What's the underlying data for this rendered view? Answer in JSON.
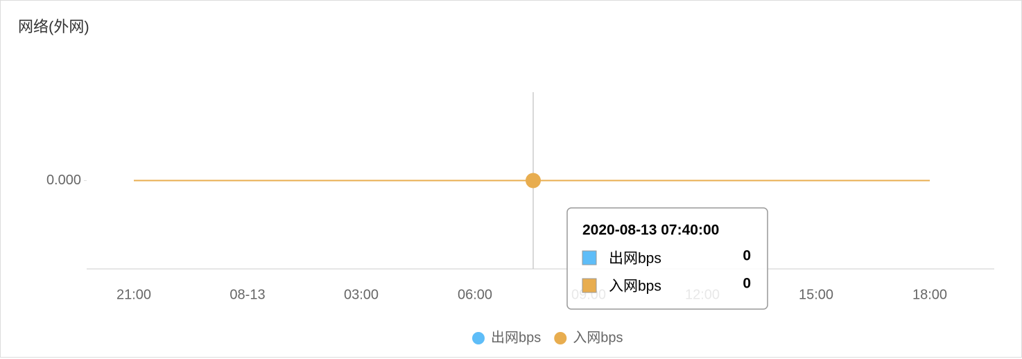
{
  "chart_data": {
    "type": "line",
    "title": "网络(外网)",
    "categories": [
      "21:00",
      "08-13",
      "03:00",
      "06:00",
      "09:00",
      "12:00",
      "15:00",
      "18:00"
    ],
    "series": [
      {
        "name": "出网bps",
        "color": "#5ebdf8",
        "values": [
          0,
          0,
          0,
          0,
          0,
          0,
          0,
          0
        ]
      },
      {
        "name": "入网bps",
        "color": "#e8ad4f",
        "values": [
          0,
          0,
          0,
          0,
          0,
          0,
          0,
          0
        ]
      }
    ],
    "ylim": [
      -1,
      1
    ],
    "yticks": [
      {
        "value": 0,
        "label": "0.000"
      }
    ],
    "legend": "bottom",
    "tooltip": {
      "title": "2020-08-13 07:40:00",
      "values": [
        0,
        0
      ]
    }
  }
}
